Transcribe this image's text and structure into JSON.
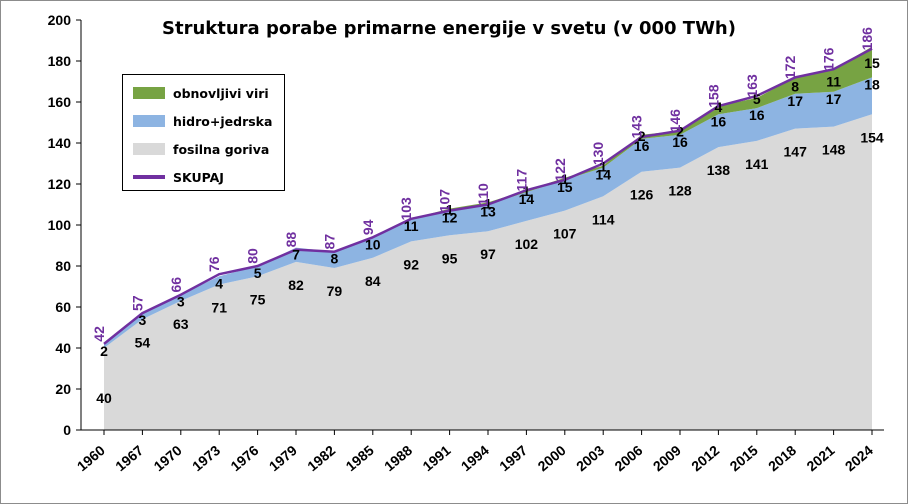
{
  "chart_data": {
    "type": "area",
    "title": "Struktura porabe primarne energije v svetu (v 000 TWh)",
    "xlabel": "",
    "ylabel": "",
    "ylim": [
      0,
      200
    ],
    "yticks": [
      0,
      20,
      40,
      60,
      80,
      100,
      120,
      140,
      160,
      180,
      200
    ],
    "categories": [
      "1960",
      "1967",
      "1970",
      "1973",
      "1976",
      "1979",
      "1982",
      "1985",
      "1988",
      "1991",
      "1994",
      "1997",
      "2000",
      "2003",
      "2006",
      "2009",
      "2012",
      "2015",
      "2018",
      "2021",
      "2024"
    ],
    "legend_position": "top-left",
    "grid": false,
    "series": [
      {
        "name": "fosilna goriva",
        "color": "#d9d9d9",
        "label_color": "#000000",
        "values": [
          40,
          54,
          63,
          71,
          75,
          82,
          79,
          84,
          92,
          95,
          97,
          102,
          107,
          114,
          126,
          128,
          138,
          141,
          147,
          148,
          154
        ]
      },
      {
        "name": "hidro+jedrska",
        "color": "#8db4e2",
        "label_color": "#000000",
        "values": [
          2,
          3,
          3,
          4,
          5,
          7,
          8,
          10,
          11,
          12,
          13,
          14,
          15,
          14,
          16,
          16,
          16,
          16,
          17,
          17,
          18
        ]
      },
      {
        "name": "obnovljivi viri",
        "color": "#77a343",
        "label_color": "#000000",
        "values": [
          null,
          null,
          null,
          null,
          null,
          null,
          null,
          null,
          null,
          1,
          1,
          1,
          1,
          1,
          2,
          2,
          4,
          5,
          8,
          11,
          15
        ]
      },
      {
        "name": "SKUPAJ",
        "color": "#7030a0",
        "label_color": "#7030a0",
        "values": [
          42,
          57,
          66,
          76,
          80,
          88,
          87,
          94,
          103,
          107,
          110,
          117,
          122,
          130,
          143,
          146,
          158,
          163,
          172,
          176,
          186
        ]
      }
    ]
  }
}
